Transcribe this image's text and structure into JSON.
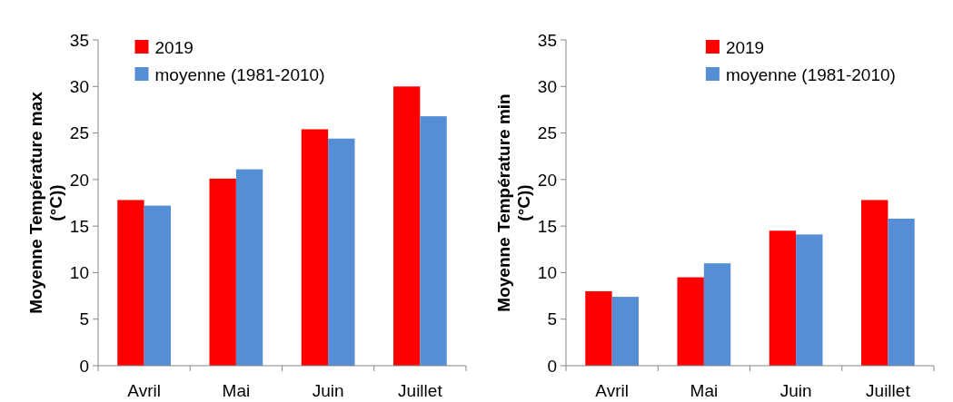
{
  "chart_data": [
    {
      "type": "bar",
      "ylabel": "Moyenne Température max (°C))",
      "categories": [
        "Avril",
        "Mai",
        "Juin",
        "Juillet"
      ],
      "series": [
        {
          "name": "2019",
          "color": "#ff0000",
          "values": [
            17.8,
            20.1,
            25.4,
            30.0
          ]
        },
        {
          "name": "moyenne (1981-2010)",
          "color": "#558ed5",
          "values": [
            17.2,
            21.1,
            24.4,
            26.8
          ]
        }
      ],
      "ylim": [
        0,
        35
      ],
      "yticks": [
        0,
        5,
        10,
        15,
        20,
        25,
        30,
        35
      ],
      "legend": "top left"
    },
    {
      "type": "bar",
      "ylabel": "Moyenne Température min (°C))",
      "categories": [
        "Avril",
        "Mai",
        "Juin",
        "Juillet"
      ],
      "series": [
        {
          "name": "2019",
          "color": "#ff0000",
          "values": [
            8.0,
            9.5,
            14.5,
            17.8
          ]
        },
        {
          "name": "moyenne (1981-2010)",
          "color": "#558ed5",
          "values": [
            7.4,
            11.0,
            14.1,
            15.8
          ]
        }
      ],
      "ylim": [
        0,
        35
      ],
      "yticks": [
        0,
        5,
        10,
        15,
        20,
        25,
        30,
        35
      ],
      "legend": "top right"
    }
  ]
}
